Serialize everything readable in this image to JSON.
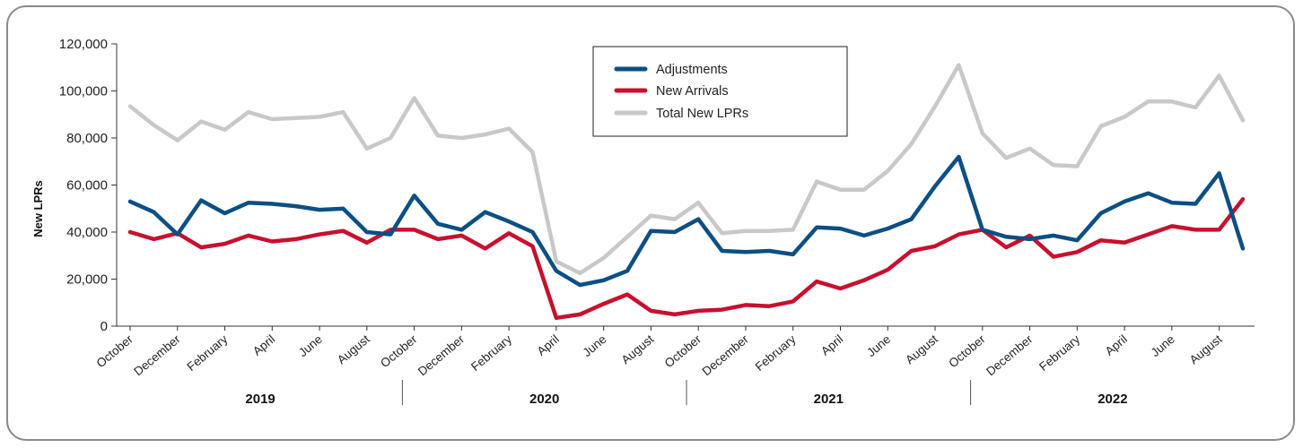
{
  "chart_data": {
    "type": "line",
    "xlabel": "",
    "ylabel": "New LPRs",
    "ylim": [
      0,
      120000
    ],
    "yticks": [
      0,
      20000,
      40000,
      60000,
      80000,
      100000,
      120000
    ],
    "ytick_labels": [
      "0",
      "20,000",
      "40,000",
      "60,000",
      "80,000",
      "100,000",
      "120,000"
    ],
    "grid": false,
    "legend_position": "top-center",
    "x": [
      "Oct 2019",
      "Nov 2019",
      "Dec 2019",
      "Jan 2019",
      "Feb 2019",
      "Mar 2019",
      "Apr 2019",
      "May 2019",
      "Jun 2019",
      "Jul 2019",
      "Aug 2019",
      "Sep 2019",
      "Oct 2020",
      "Nov 2020",
      "Dec 2020",
      "Jan 2020",
      "Feb 2020",
      "Mar 2020",
      "Apr 2020",
      "May 2020",
      "Jun 2020",
      "Jul 2020",
      "Aug 2020",
      "Sep 2020",
      "Oct 2021",
      "Nov 2021",
      "Dec 2021",
      "Jan 2021",
      "Feb 2021",
      "Mar 2021",
      "Apr 2021",
      "May 2021",
      "Jun 2021",
      "Jul 2021",
      "Aug 2021",
      "Sep 2021",
      "Oct 2022",
      "Nov 2022",
      "Dec 2022",
      "Jan 2022",
      "Feb 2022",
      "Mar 2022",
      "Apr 2022",
      "May 2022",
      "Jun 2022",
      "Jul 2022",
      "Aug 2022",
      "Sep 2022"
    ],
    "tick_labels": [
      {
        "index": 0,
        "label": "October"
      },
      {
        "index": 2,
        "label": "December"
      },
      {
        "index": 4,
        "label": "February"
      },
      {
        "index": 6,
        "label": "April"
      },
      {
        "index": 8,
        "label": "June"
      },
      {
        "index": 10,
        "label": "August"
      },
      {
        "index": 12,
        "label": "October"
      },
      {
        "index": 14,
        "label": "December"
      },
      {
        "index": 16,
        "label": "February"
      },
      {
        "index": 18,
        "label": "April"
      },
      {
        "index": 20,
        "label": "June"
      },
      {
        "index": 22,
        "label": "August"
      },
      {
        "index": 24,
        "label": "October"
      },
      {
        "index": 26,
        "label": "December"
      },
      {
        "index": 28,
        "label": "February"
      },
      {
        "index": 30,
        "label": "April"
      },
      {
        "index": 32,
        "label": "June"
      },
      {
        "index": 34,
        "label": "August"
      },
      {
        "index": 36,
        "label": "October"
      },
      {
        "index": 38,
        "label": "December"
      },
      {
        "index": 40,
        "label": "February"
      },
      {
        "index": 42,
        "label": "April"
      },
      {
        "index": 44,
        "label": "June"
      },
      {
        "index": 46,
        "label": "August"
      }
    ],
    "year_groups": [
      {
        "label": "2019",
        "start": 0,
        "end": 11
      },
      {
        "label": "2020",
        "start": 12,
        "end": 23
      },
      {
        "label": "2021",
        "start": 24,
        "end": 35
      },
      {
        "label": "2022",
        "start": 36,
        "end": 47
      }
    ],
    "series": [
      {
        "name": "Adjustments",
        "color": "#0b4f84",
        "values": [
          53000,
          48500,
          39000,
          53500,
          48000,
          52500,
          52000,
          51000,
          49500,
          50000,
          40000,
          39000,
          55500,
          43500,
          41000,
          48500,
          44500,
          40000,
          23500,
          17500,
          19500,
          23500,
          40500,
          40000,
          45500,
          32000,
          31500,
          32000,
          30500,
          42000,
          41500,
          38500,
          41500,
          45500,
          59500,
          72000,
          41000,
          38000,
          37000,
          38500,
          36500,
          48000,
          53000,
          56500,
          52500,
          52000,
          65000,
          33000
        ]
      },
      {
        "name": "New Arrivals",
        "color": "#c8102e",
        "values": [
          40000,
          37000,
          39500,
          33500,
          35000,
          38500,
          36000,
          37000,
          39000,
          40500,
          35500,
          41000,
          41000,
          37000,
          38500,
          33000,
          39500,
          34000,
          3500,
          5000,
          9500,
          13500,
          6500,
          5000,
          6500,
          7000,
          9000,
          8500,
          10500,
          19000,
          16000,
          19500,
          24000,
          32000,
          34000,
          39000,
          41000,
          33500,
          38500,
          29500,
          31500,
          36500,
          35500,
          39000,
          42500,
          41000,
          41000,
          54000
        ]
      },
      {
        "name": "Total New LPRs",
        "color": "#c8c8c8",
        "values": [
          93500,
          85500,
          79000,
          87000,
          83500,
          91000,
          88000,
          88500,
          89000,
          91000,
          75500,
          80000,
          97000,
          81000,
          80000,
          81500,
          84000,
          74000,
          27500,
          22500,
          29000,
          38000,
          47000,
          45500,
          52500,
          39500,
          40500,
          40500,
          41000,
          61500,
          58000,
          58000,
          66000,
          77500,
          93500,
          111000,
          82000,
          71500,
          75500,
          68500,
          68000,
          85000,
          89000,
          95500,
          95500,
          93000,
          106500,
          87500
        ]
      }
    ]
  }
}
